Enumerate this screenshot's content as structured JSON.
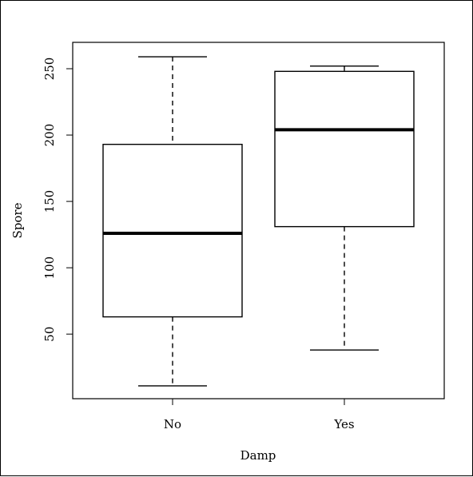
{
  "chart_data": {
    "type": "boxplot",
    "title": "",
    "xlabel": "Damp",
    "ylabel": "Spore",
    "categories": [
      "No",
      "Yes"
    ],
    "boxes": [
      {
        "category": "No",
        "whisker_low": 11,
        "q1": 63,
        "median": 126,
        "q3": 193,
        "whisker_high": 259
      },
      {
        "category": "Yes",
        "whisker_low": 38,
        "q1": 131,
        "median": 204,
        "q3": 248,
        "whisker_high": 252
      }
    ],
    "yticks": [
      50,
      100,
      150,
      200,
      250
    ],
    "ylim": [
      0,
      268
    ],
    "grid": false,
    "colors": {
      "box_fill": "#ffffff",
      "stroke": "#000000"
    }
  }
}
